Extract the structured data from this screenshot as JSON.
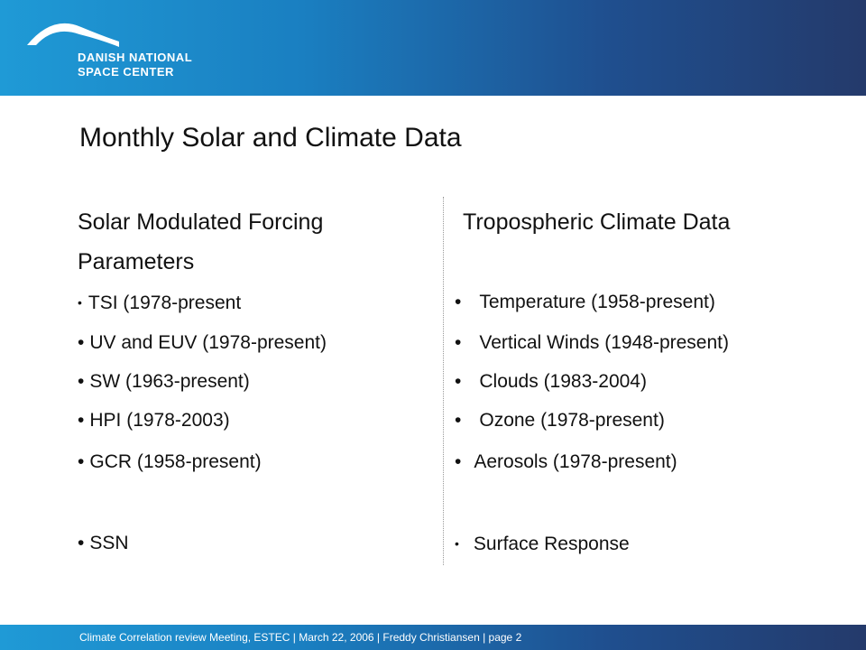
{
  "header": {
    "logo_line1": "DANISH NATIONAL",
    "logo_line2": "SPACE CENTER",
    "logo_icon": "arc-logo-icon"
  },
  "title": "Monthly Solar and Climate Data",
  "left": {
    "heading": "Solar Modulated Forcing Parameters",
    "items": [
      "TSI (1978-present",
      "UV and EUV (1978-present)",
      "SW (1963-present)",
      "HPI (1978-2003)",
      "GCR (1958-present)",
      "SSN"
    ]
  },
  "right": {
    "heading": "Tropospheric Climate Data",
    "items": [
      "Temperature (1958-present)",
      "Vertical Winds (1948-present)",
      "Clouds (1983-2004)",
      "Ozone (1978-present)",
      "Aerosols (1978-present)",
      "Surface Response"
    ]
  },
  "bullet": "•",
  "footer": "Climate Correlation review Meeting, ESTEC | March 22, 2006 | Freddy Christiansen | page 2",
  "colors": {
    "header_start": "#1f9ad6",
    "header_end": "#243a6b",
    "text": "#111111"
  }
}
